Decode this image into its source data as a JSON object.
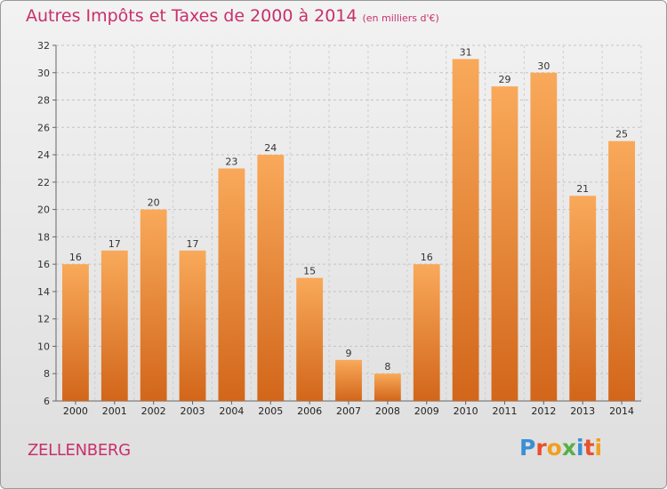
{
  "header": {
    "title": "Autres Impôts et Taxes de 2000 à 2014",
    "subtitle": "(en milliers d'€)"
  },
  "footer": {
    "town": "ZELLENBERG",
    "logo": {
      "letters": [
        "P",
        "r",
        "o",
        "x",
        "i",
        "t",
        "i"
      ],
      "colors": [
        "#3a8fd6",
        "#e8502e",
        "#f0a020",
        "#56b046",
        "#3a8fd6",
        "#e8502e",
        "#f0a020"
      ]
    }
  },
  "chart_data": {
    "type": "bar",
    "title": "Autres Impôts et Taxes de 2000 à 2014",
    "subtitle": "(en milliers d'€)",
    "xlabel": "",
    "ylabel": "",
    "categories": [
      "2000",
      "2001",
      "2002",
      "2003",
      "2004",
      "2005",
      "2006",
      "2007",
      "2008",
      "2009",
      "2010",
      "2011",
      "2012",
      "2013",
      "2014"
    ],
    "values": [
      16,
      17,
      20,
      17,
      23,
      24,
      15,
      9,
      8,
      16,
      31,
      29,
      30,
      21,
      25
    ],
    "ylim": [
      6,
      32
    ],
    "yticks": [
      6,
      8,
      10,
      12,
      14,
      16,
      18,
      20,
      22,
      24,
      26,
      28,
      30,
      32
    ],
    "grid": true,
    "bar_color_top": "#f9a95a",
    "bar_color_bottom": "#d2661a"
  }
}
